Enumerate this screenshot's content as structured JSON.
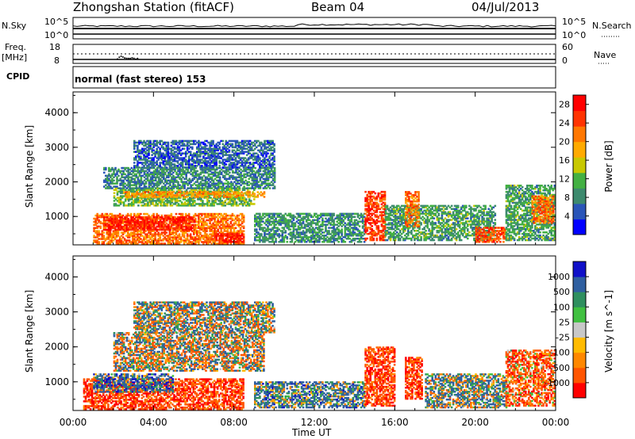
{
  "header": {
    "station": "Zhongshan Station (fitACF)",
    "beam": "Beam 04",
    "date": "04/Jul/2013"
  },
  "strip_labels": {
    "nsky": "N.Sky",
    "nsky_top": "10^5",
    "nsky_bottom": "10^0",
    "nsearch": "N.Search",
    "nsearch_top": "10^5",
    "nsearch_bottom": "10^0",
    "freq_title": "Freq.",
    "freq_unit": "[MHz]",
    "freq_top": "18",
    "freq_bottom": "8",
    "nave": "Nave",
    "nave_top": "60",
    "nave_bottom": "0",
    "cpid": "CPID",
    "mode": "normal (fast stereo) 153"
  },
  "colors": {
    "power": [
      "#0000ff",
      "#2a55b8",
      "#3d8a6e",
      "#43b043",
      "#c8c800",
      "#ffaa00",
      "#ff7700",
      "#ff3300",
      "#ff0000"
    ],
    "velocity": [
      "#ff0000",
      "#ff5500",
      "#ff8800",
      "#ffbb00",
      "#c8c8c8",
      "#40c040",
      "#2f8f5f",
      "#2f5fa0",
      "#1010c8"
    ]
  },
  "chart_data": [
    {
      "type": "heatmap",
      "title": "",
      "ylabel": "Slant Range [km]",
      "xlabel": "",
      "x_ticks": [
        "00:00",
        "04:00",
        "08:00",
        "12:00",
        "16:00",
        "20:00",
        "00:00"
      ],
      "y_ticks": [
        "1000",
        "2000",
        "3000",
        "4000"
      ],
      "ylim": [
        180,
        4600
      ],
      "xlim_hours": [
        0,
        24
      ],
      "colorbar": {
        "label": "Power [dB]",
        "ticks": [
          "4",
          "8",
          "12",
          "16",
          "20",
          "24",
          "28"
        ],
        "range": [
          0,
          30
        ]
      },
      "regions": [
        {
          "t0": 1.0,
          "t1": 8.5,
          "r0": 200,
          "r1": 1100,
          "value": 22
        },
        {
          "t0": 1.5,
          "t1": 6.0,
          "r0": 600,
          "r1": 1000,
          "value": 27
        },
        {
          "t0": 7.0,
          "t1": 8.5,
          "r0": 250,
          "r1": 500,
          "value": 28
        },
        {
          "t0": 2.0,
          "t1": 9.0,
          "r0": 1300,
          "r1": 1800,
          "value": 12
        },
        {
          "t0": 2.5,
          "t1": 9.5,
          "r0": 1550,
          "r1": 1700,
          "value": 20
        },
        {
          "t0": 1.5,
          "t1": 10.0,
          "r0": 1800,
          "r1": 2400,
          "value": 8
        },
        {
          "t0": 3.0,
          "t1": 10.0,
          "r0": 2400,
          "r1": 3200,
          "value": 6
        },
        {
          "t0": 9.0,
          "t1": 14.5,
          "r0": 250,
          "r1": 1100,
          "value": 9
        },
        {
          "t0": 14.5,
          "t1": 15.5,
          "r0": 300,
          "r1": 1700,
          "value": 25
        },
        {
          "t0": 15.5,
          "t1": 21.0,
          "r0": 300,
          "r1": 1300,
          "value": 10
        },
        {
          "t0": 16.5,
          "t1": 17.2,
          "r0": 700,
          "r1": 1700,
          "value": 22
        },
        {
          "t0": 20.0,
          "t1": 21.5,
          "r0": 250,
          "r1": 700,
          "value": 24
        },
        {
          "t0": 21.5,
          "t1": 23.9,
          "r0": 300,
          "r1": 1900,
          "value": 10
        },
        {
          "t0": 22.8,
          "t1": 23.9,
          "r0": 800,
          "r1": 1600,
          "value": 22
        }
      ]
    },
    {
      "type": "heatmap",
      "title": "",
      "ylabel": "Slant Range [km]",
      "xlabel": "Time UT",
      "x_ticks": [
        "00:00",
        "04:00",
        "08:00",
        "12:00",
        "16:00",
        "20:00",
        "00:00"
      ],
      "y_ticks": [
        "1000",
        "2000",
        "3000",
        "4000"
      ],
      "ylim": [
        180,
        4600
      ],
      "xlim_hours": [
        0,
        24
      ],
      "colorbar": {
        "label": "Velocity [m s^-1]",
        "ticks": [
          "-1000",
          "-500",
          "-100",
          "-25",
          "25",
          "100",
          "500",
          "1000"
        ]
      },
      "regions": [
        {
          "t0": 0.5,
          "t1": 8.5,
          "r0": 200,
          "r1": 1100,
          "value": -300
        },
        {
          "t0": 1.0,
          "t1": 5.0,
          "r0": 700,
          "r1": 1200,
          "value": 200
        },
        {
          "t0": 2.0,
          "t1": 9.5,
          "r0": 1300,
          "r1": 2400,
          "value": 0
        },
        {
          "t0": 3.0,
          "t1": 10.0,
          "r0": 2400,
          "r1": 3300,
          "value": 30
        },
        {
          "t0": 9.0,
          "t1": 14.5,
          "r0": 250,
          "r1": 1000,
          "value": 150
        },
        {
          "t0": 14.5,
          "t1": 16.0,
          "r0": 300,
          "r1": 2000,
          "value": -300
        },
        {
          "t0": 16.5,
          "t1": 17.3,
          "r0": 500,
          "r1": 1700,
          "value": -300
        },
        {
          "t0": 17.5,
          "t1": 21.5,
          "r0": 250,
          "r1": 1200,
          "value": 80
        },
        {
          "t0": 21.5,
          "t1": 23.9,
          "r0": 300,
          "r1": 1900,
          "value": -200
        }
      ]
    }
  ]
}
